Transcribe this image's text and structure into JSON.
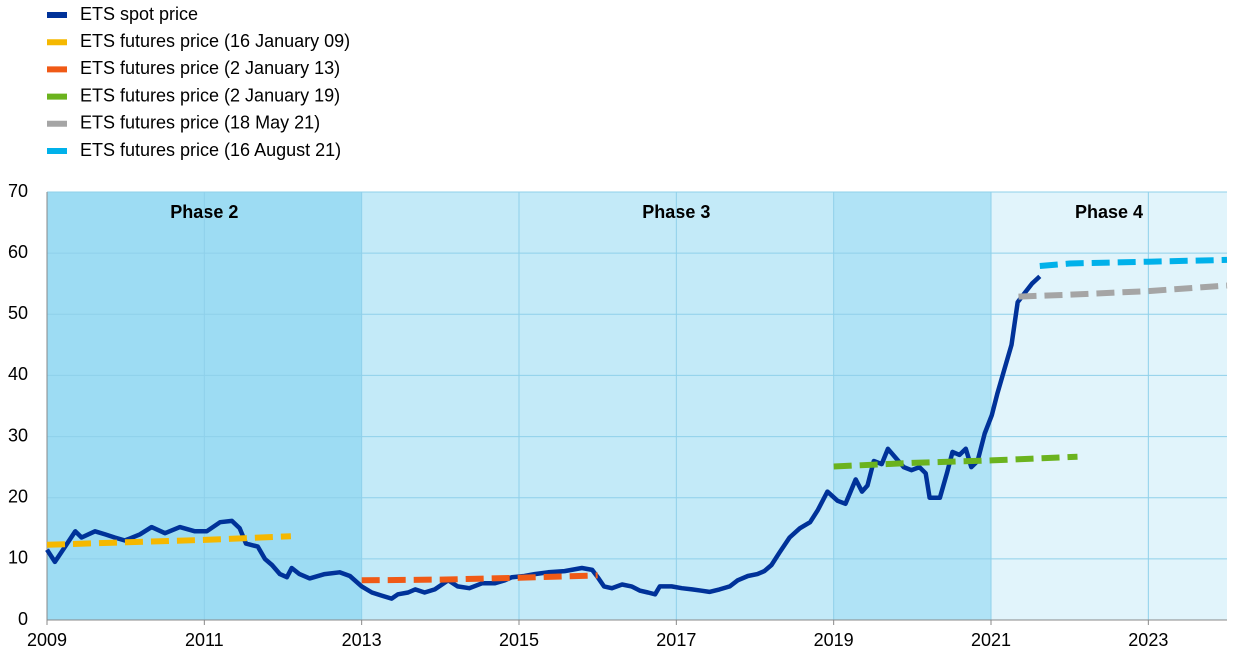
{
  "chart_data": {
    "type": "line",
    "legend": "top-left",
    "grid": true,
    "xlim": [
      2009,
      2024
    ],
    "ylim": [
      0,
      70
    ],
    "xticks": [
      2009,
      2011,
      2013,
      2015,
      2017,
      2019,
      2021,
      2023
    ],
    "yticks": [
      0,
      10,
      20,
      30,
      40,
      50,
      60,
      70
    ],
    "bands": [
      {
        "label": "Phase 2",
        "start": 2009,
        "end": 2013,
        "color": "#9ddcf3"
      },
      {
        "label": "Phase 3",
        "start": 2013,
        "end": 2021,
        "color": "#c3eaf8"
      },
      {
        "start": 2019,
        "end": 2021,
        "color": "#b0e3f6"
      },
      {
        "label": "Phase 4",
        "start": 2021,
        "end": 2024,
        "color": "#e1f4fb"
      }
    ],
    "series": [
      {
        "name": "ETS spot price",
        "color": "#003299",
        "style": "solid",
        "x": [
          2009.0,
          2009.1,
          2009.23,
          2009.36,
          2009.44,
          2009.61,
          2009.74,
          2009.86,
          2009.99,
          2010.18,
          2010.33,
          2010.5,
          2010.69,
          2010.88,
          2011.03,
          2011.2,
          2011.35,
          2011.45,
          2011.53,
          2011.68,
          2011.77,
          2011.86,
          2011.96,
          2012.05,
          2012.11,
          2012.21,
          2012.34,
          2012.53,
          2012.72,
          2012.85,
          2013.0,
          2013.13,
          2013.25,
          2013.38,
          2013.46,
          2013.59,
          2013.68,
          2013.8,
          2013.93,
          2014.1,
          2014.22,
          2014.37,
          2014.53,
          2014.69,
          2014.82,
          2014.91,
          2015.07,
          2015.2,
          2015.37,
          2015.58,
          2015.8,
          2015.93,
          2016.0,
          2016.08,
          2016.18,
          2016.31,
          2016.43,
          2016.54,
          2016.64,
          2016.73,
          2016.79,
          2016.94,
          2017.07,
          2017.2,
          2017.32,
          2017.42,
          2017.55,
          2017.68,
          2017.78,
          2017.91,
          2018.03,
          2018.12,
          2018.21,
          2018.31,
          2018.44,
          2018.57,
          2018.7,
          2018.8,
          2018.92,
          2019.05,
          2019.15,
          2019.28,
          2019.36,
          2019.43,
          2019.51,
          2019.61,
          2019.69,
          2019.79,
          2019.89,
          2019.99,
          2020.09,
          2020.17,
          2020.22,
          2020.35,
          2020.44,
          2020.51,
          2020.6,
          2020.68,
          2020.75,
          2020.83,
          2020.92,
          2021.01,
          2021.08,
          2021.17,
          2021.26,
          2021.34,
          2021.43,
          2021.52,
          2021.62
        ],
        "values": [
          11.5,
          9.5,
          12,
          14.5,
          13.5,
          14.5,
          14,
          13.5,
          13,
          14,
          15.2,
          14.2,
          15.2,
          14.5,
          14.5,
          16,
          16.2,
          15,
          12.5,
          12,
          10,
          9,
          7.5,
          7,
          8.5,
          7.5,
          6.8,
          7.5,
          7.8,
          7.2,
          5.5,
          4.5,
          4,
          3.5,
          4.2,
          4.5,
          5,
          4.5,
          5,
          6.5,
          5.5,
          5.2,
          6,
          6,
          6.5,
          7,
          7.2,
          7.5,
          7.8,
          8,
          8.5,
          8.2,
          7,
          5.5,
          5.2,
          5.8,
          5.5,
          4.8,
          4.5,
          4.2,
          5.5,
          5.5,
          5.2,
          5,
          4.8,
          4.6,
          5,
          5.5,
          6.5,
          7.2,
          7.5,
          8,
          9,
          11,
          13.5,
          15,
          16,
          18,
          21,
          19.5,
          19,
          23,
          21,
          22,
          26,
          25.5,
          28,
          26.5,
          25,
          24.5,
          25,
          24,
          20,
          20,
          24,
          27.5,
          27,
          28,
          25,
          26,
          30.5,
          33.5,
          37,
          41,
          45,
          52,
          53.5,
          55,
          56.2
        ]
      },
      {
        "name": "ETS futures price (16 January 09)",
        "color": "#f5b800",
        "style": "dashed",
        "x": [
          2009,
          2010,
          2011,
          2012.1
        ],
        "values": [
          12.3,
          12.7,
          13.1,
          13.7
        ]
      },
      {
        "name": "ETS futures price (2 January 13)",
        "color": "#f05a16",
        "style": "dashed",
        "x": [
          2013,
          2014,
          2015,
          2016
        ],
        "values": [
          6.5,
          6.6,
          6.9,
          7.3
        ]
      },
      {
        "name": "ETS futures price (2 January 19)",
        "color": "#6bb31e",
        "style": "dashed",
        "x": [
          2019,
          2020,
          2021,
          2022.1
        ],
        "values": [
          25.1,
          25.7,
          26.1,
          26.7
        ]
      },
      {
        "name": "ETS futures price (18 May 21)",
        "color": "#a5a5a5",
        "style": "dashed",
        "x": [
          2021.35,
          2022,
          2023,
          2024
        ],
        "values": [
          52.9,
          53.2,
          53.8,
          54.7
        ]
      },
      {
        "name": "ETS futures price (16 August 21)",
        "color": "#00b1ea",
        "style": "dashed",
        "x": [
          2021.62,
          2022,
          2023,
          2024
        ],
        "values": [
          57.9,
          58.3,
          58.6,
          58.9
        ]
      }
    ]
  }
}
